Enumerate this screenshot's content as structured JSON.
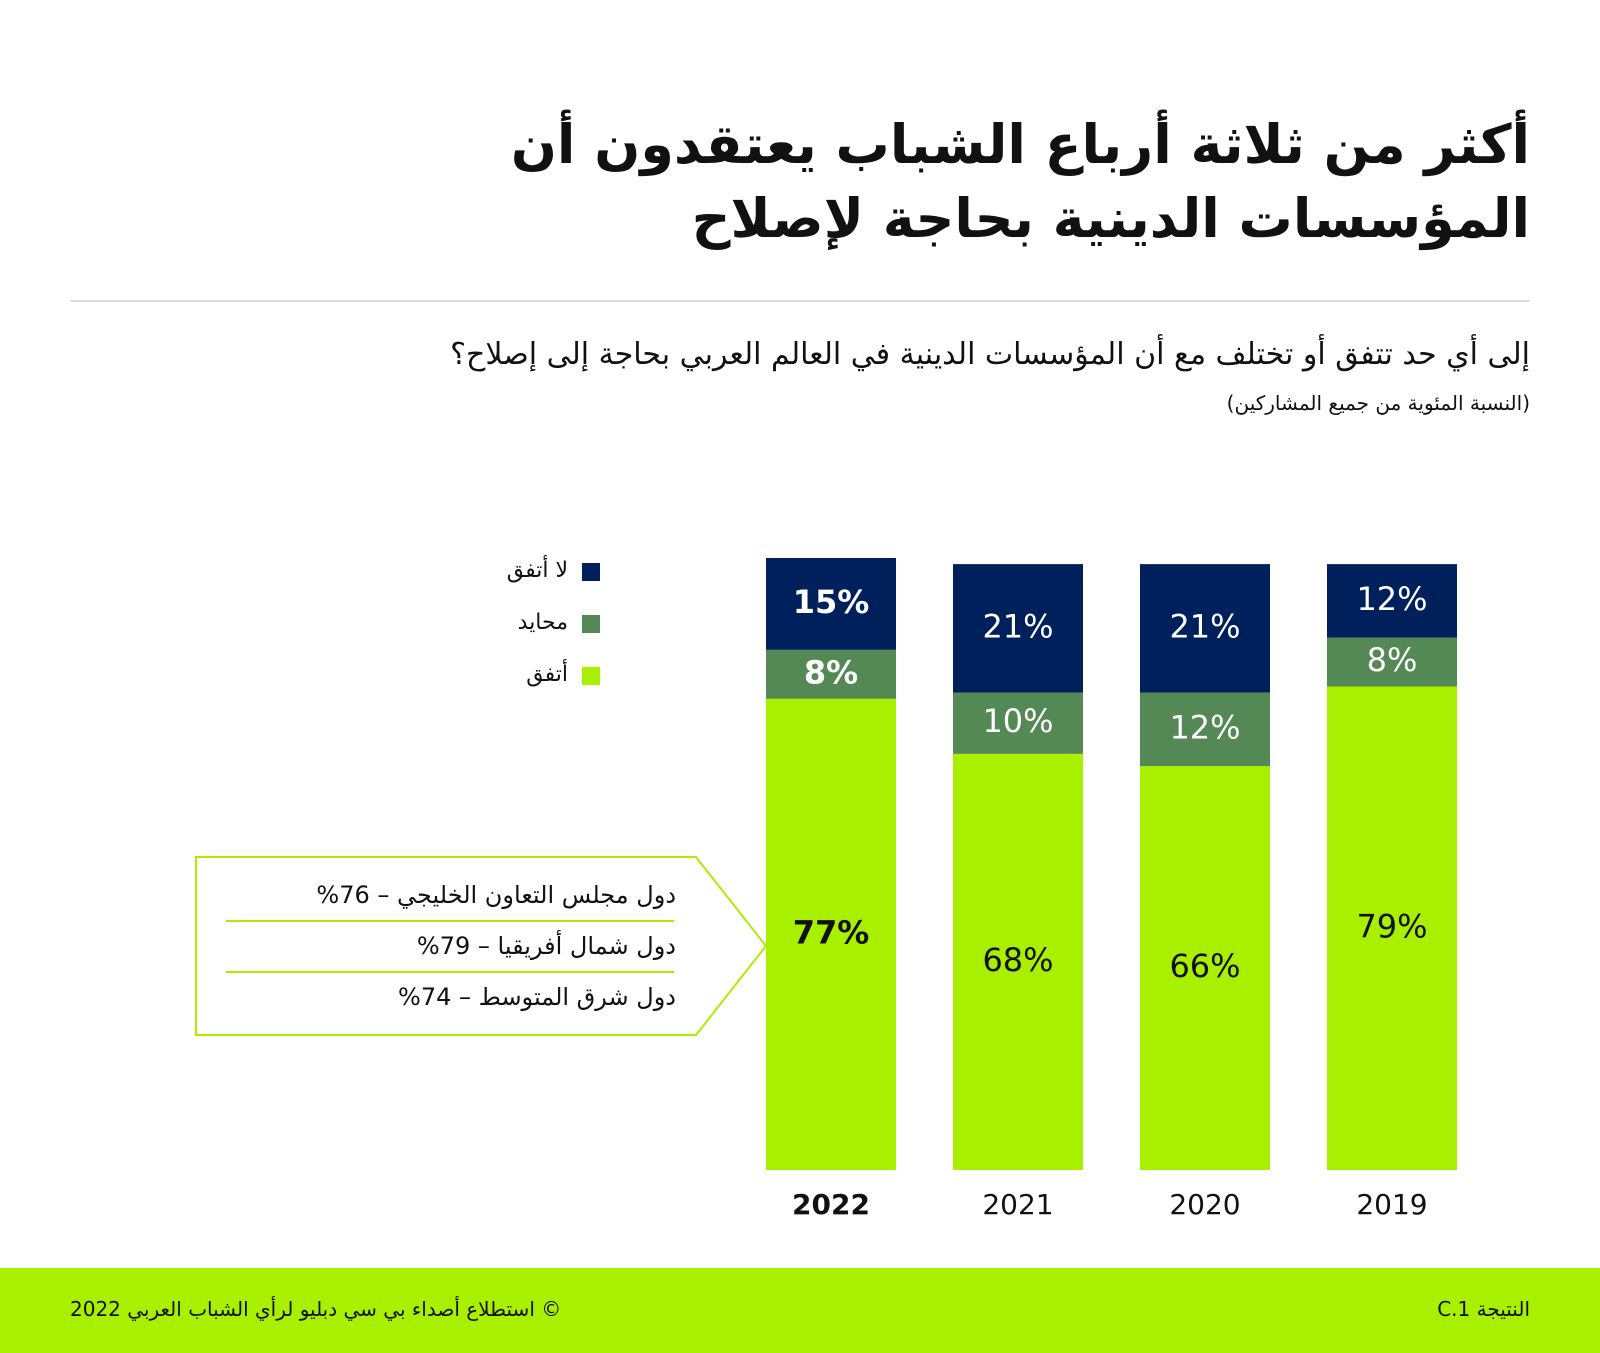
{
  "header": {
    "title": "أكثر من ثلاثة أرباع الشباب يعتقدون أن المؤسسات الدينية بحاجة لإصلاح",
    "question": "إلى أي حد تتفق أو تختلف مع أن المؤسسات الدينية في العالم العربي بحاجة إلى إصلاح؟",
    "note": "(النسبة المئوية من جميع المشاركين)"
  },
  "colors": {
    "agree": "#a8f000",
    "neutral": "#548956",
    "disagree": "#00205b"
  },
  "chart_data": {
    "type": "bar",
    "stacked": true,
    "categories": [
      "2022",
      "2021",
      "2020",
      "2019"
    ],
    "series": [
      {
        "name": "أتفق",
        "values": [
          77,
          68,
          66,
          79
        ]
      },
      {
        "name": "محايد",
        "values": [
          8,
          10,
          12,
          8
        ]
      },
      {
        "name": "لا أتفق",
        "values": [
          15,
          21,
          21,
          12
        ]
      }
    ],
    "value_labels": {
      "agree": [
        "77%",
        "68%",
        "66%",
        "79%"
      ],
      "neutral": [
        "8%",
        "10%",
        "12%",
        "8%"
      ],
      "disagree": [
        "15%",
        "21%",
        "21%",
        "12%"
      ]
    },
    "highlight_category": "2022",
    "ylim": [
      0,
      100
    ],
    "legend": [
      {
        "label": "لا أتفق",
        "color": "#00205b"
      },
      {
        "label": "محايد",
        "color": "#548956"
      },
      {
        "label": "أتفق",
        "color": "#a8f000"
      }
    ],
    "legend_position": "left",
    "grid": false
  },
  "callout": {
    "items": [
      "دول مجلس التعاون الخليجي – 76%",
      "دول شمال أفريقيا – 79%",
      "دول شرق المتوسط – 74%"
    ]
  },
  "footer": {
    "source": "© استطلاع أصداء بي سي دبليو لرأي الشباب العربي 2022",
    "finding": "النتيجة C.1"
  }
}
